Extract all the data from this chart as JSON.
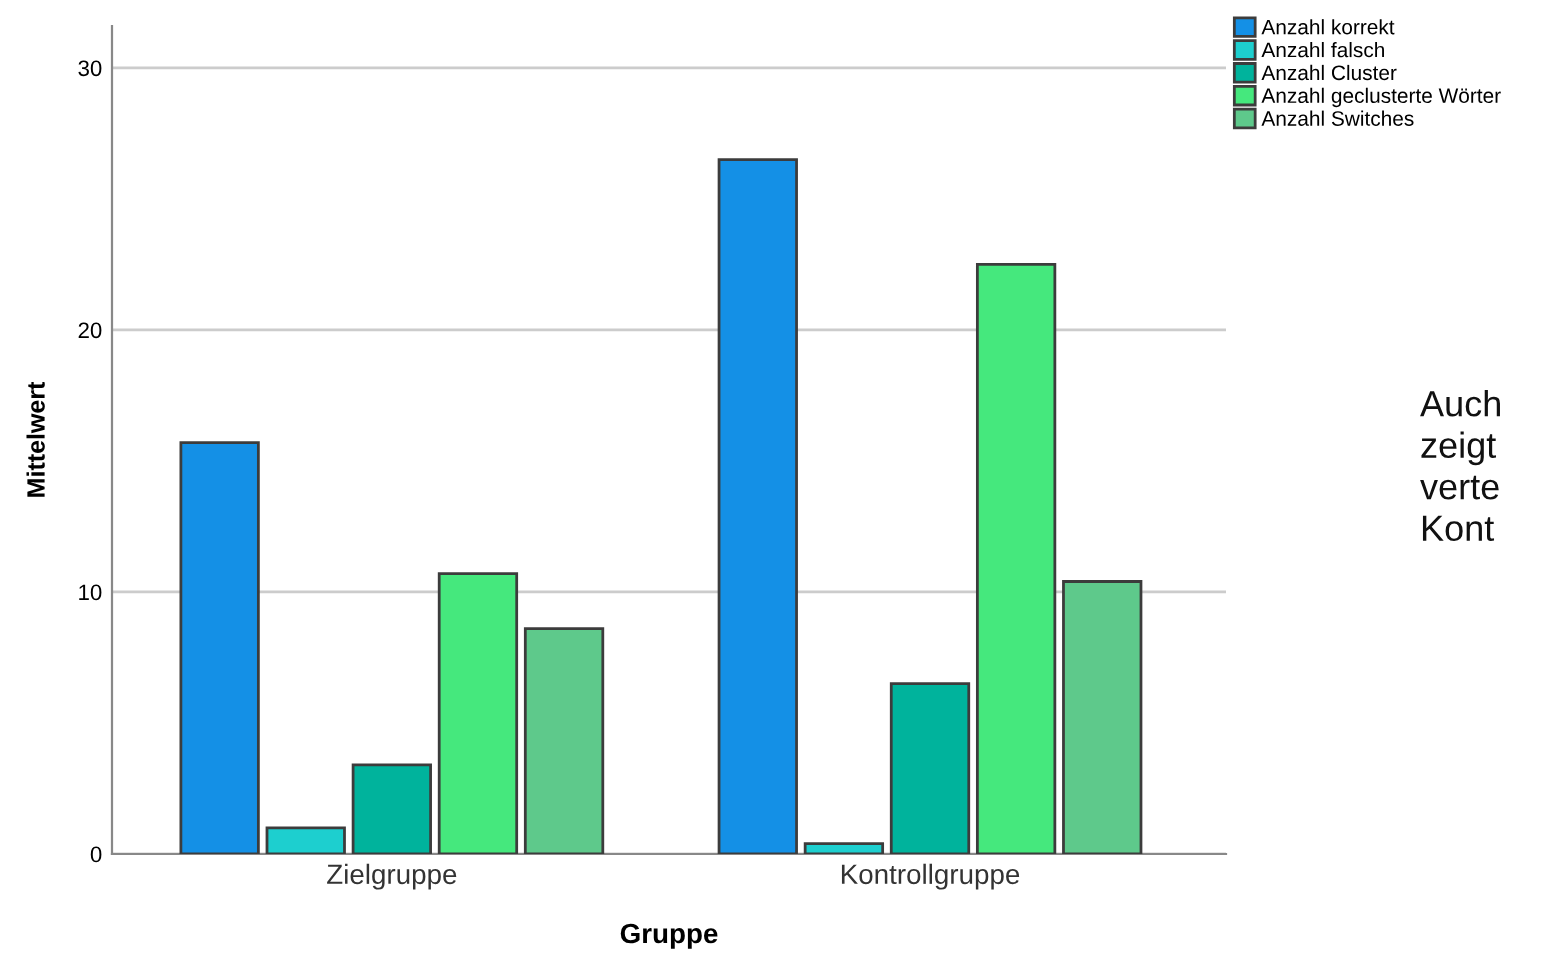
{
  "chart_data": {
    "type": "bar",
    "xlabel": "Gruppe",
    "ylabel": "Mittelwert",
    "categories": [
      "Zielgruppe",
      "Kontrollgruppe"
    ],
    "series": [
      {
        "name": "Anzahl korrekt",
        "color": "#1490e6",
        "values": [
          15.7,
          26.5
        ]
      },
      {
        "name": "Anzahl falsch",
        "color": "#1dcfcf",
        "values": [
          1.0,
          0.4
        ]
      },
      {
        "name": "Anzahl Cluster",
        "color": "#00b39c",
        "values": [
          3.4,
          6.5
        ]
      },
      {
        "name": "Anzahl geclusterte Wörter",
        "color": "#45e87d",
        "values": [
          10.7,
          22.5
        ]
      },
      {
        "name": "Anzahl Switches",
        "color": "#5ec98b",
        "values": [
          8.6,
          10.4
        ]
      }
    ],
    "ylim": [
      0,
      31.6
    ],
    "yticks": [
      0,
      10,
      20,
      30
    ],
    "grid": "y",
    "legend": "top right",
    "annotations": [
      "Auch\nzeigt\nverte\nKont"
    ]
  }
}
